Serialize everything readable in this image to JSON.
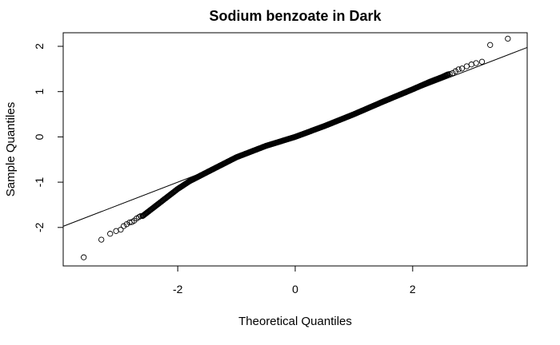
{
  "chart_data": {
    "type": "scatter",
    "title": "Sodium benzoate in Dark",
    "xlabel": "Theoretical Quantiles",
    "ylabel": "Sample Quantiles",
    "xlim": [
      -3.95,
      3.95
    ],
    "ylim": [
      -2.85,
      2.3
    ],
    "xticks": [
      -2,
      0,
      2
    ],
    "yticks": [
      -2,
      -1,
      0,
      1,
      2
    ],
    "grid": false,
    "legend": "none",
    "reference_line": {
      "intercept": 0.0,
      "slope": 0.5
    },
    "body_curve": [
      [
        -2.6,
        -1.75
      ],
      [
        -2.4,
        -1.55
      ],
      [
        -2.2,
        -1.35
      ],
      [
        -2.0,
        -1.15
      ],
      [
        -1.8,
        -0.98
      ],
      [
        -1.5,
        -0.78
      ],
      [
        -1.0,
        -0.45
      ],
      [
        -0.5,
        -0.2
      ],
      [
        0.0,
        0.0
      ],
      [
        0.5,
        0.24
      ],
      [
        1.0,
        0.5
      ],
      [
        1.5,
        0.78
      ],
      [
        2.0,
        1.05
      ],
      [
        2.3,
        1.22
      ],
      [
        2.5,
        1.32
      ],
      [
        2.6,
        1.38
      ]
    ],
    "tail_points": [
      [
        -3.6,
        -2.66
      ],
      [
        -3.3,
        -2.27
      ],
      [
        -3.15,
        -2.14
      ],
      [
        -3.05,
        -2.08
      ],
      [
        -2.97,
        -2.05
      ],
      [
        -2.92,
        -1.97
      ],
      [
        -2.87,
        -1.93
      ],
      [
        -2.82,
        -1.89
      ],
      [
        -2.78,
        -1.88
      ],
      [
        -2.74,
        -1.85
      ],
      [
        -2.7,
        -1.8
      ],
      [
        -2.66,
        -1.77
      ],
      [
        -2.63,
        -1.75
      ],
      [
        2.63,
        1.39
      ],
      [
        2.68,
        1.41
      ],
      [
        2.73,
        1.45
      ],
      [
        2.78,
        1.49
      ],
      [
        2.84,
        1.51
      ],
      [
        2.92,
        1.56
      ],
      [
        3.0,
        1.6
      ],
      [
        3.08,
        1.63
      ],
      [
        3.18,
        1.66
      ],
      [
        3.32,
        2.03
      ],
      [
        3.62,
        2.17
      ]
    ]
  }
}
